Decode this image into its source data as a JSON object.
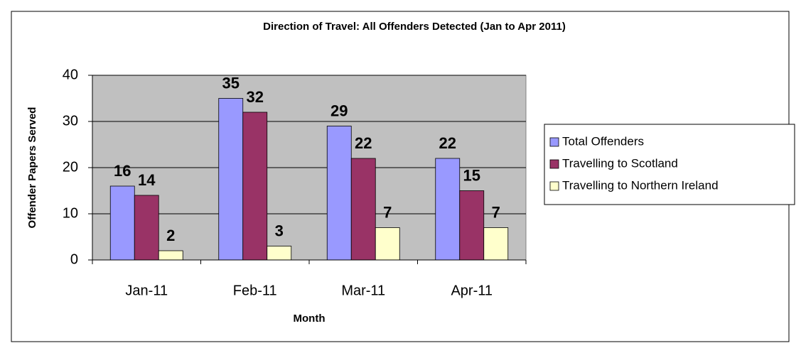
{
  "chart_data": {
    "type": "bar",
    "title": "Direction of Travel: All Offenders Detected (Jan to Apr 2011)",
    "x_label": "Month",
    "y_label": "Offender Papers Served",
    "categories": [
      "Jan-11",
      "Feb-11",
      "Mar-11",
      "Apr-11"
    ],
    "series": [
      {
        "name": "Total Offenders",
        "color": "#9999ff",
        "values": [
          16,
          35,
          29,
          22
        ]
      },
      {
        "name": "Travelling to Scotland",
        "color": "#993366",
        "values": [
          14,
          32,
          22,
          15
        ]
      },
      {
        "name": "Travelling to Northern Ireland",
        "color": "#ffffcc",
        "values": [
          2,
          3,
          7,
          7
        ]
      }
    ],
    "ylim": [
      0,
      40
    ],
    "yticks": [
      0,
      10,
      20,
      30,
      40
    ],
    "grid": true,
    "legend": "right",
    "plot_background": "#c0c0c0"
  }
}
